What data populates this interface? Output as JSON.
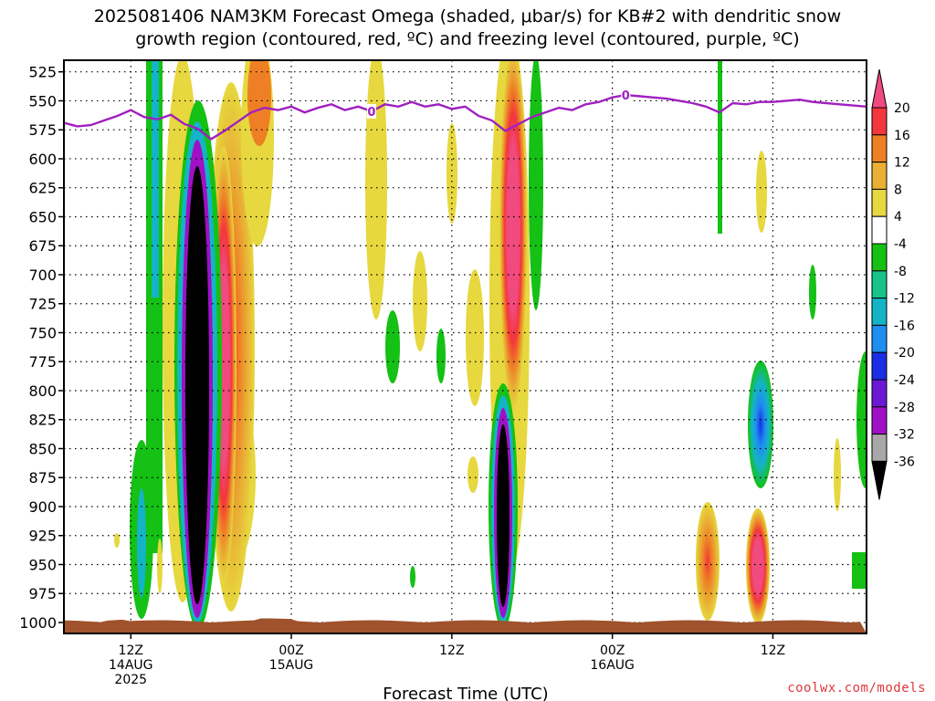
{
  "chart_data": {
    "type": "heatmap",
    "title_line1": "2025081406 NAM3KM Forecast Omega (shaded, μbar/s) for KB#2 with dendritic snow",
    "title_line2": "growth region (contoured, red, ºC) and freezing level (contoured, purple, ºC)",
    "xlabel": "Forecast Time (UTC)",
    "credit": "coolwx.com/models",
    "y_axis": {
      "ticks": [
        525,
        550,
        575,
        600,
        625,
        650,
        675,
        700,
        725,
        750,
        775,
        800,
        825,
        850,
        875,
        900,
        925,
        950,
        975,
        1000
      ],
      "range": [
        1000,
        515
      ],
      "inverted": true
    },
    "x_axis": {
      "range_hours": [
        7,
        67
      ],
      "ticks": [
        {
          "hour": 12,
          "line1": "12Z",
          "line2": "14AUG",
          "line3": "2025"
        },
        {
          "hour": 24,
          "line1": "00Z",
          "line2": "15AUG",
          "line3": ""
        },
        {
          "hour": 36,
          "line1": "12Z",
          "line2": "",
          "line3": ""
        },
        {
          "hour": 48,
          "line1": "00Z",
          "line2": "16AUG",
          "line3": ""
        },
        {
          "hour": 60,
          "line1": "12Z",
          "line2": "",
          "line3": ""
        }
      ]
    },
    "grid": true,
    "colorbar": {
      "labels": [
        "20",
        "16",
        "12",
        "8",
        "4",
        "-4",
        "-8",
        "-12",
        "-16",
        "-20",
        "-24",
        "-28",
        "-32",
        "-36"
      ],
      "colors": [
        "#f04a7e",
        "#f2363c",
        "#ee7f25",
        "#e9b035",
        "#e6d83e",
        "#ffffff",
        "#14c114",
        "#16c489",
        "#14b4c6",
        "#1e8ef0",
        "#1a2ee6",
        "#6a18d4",
        "#a010c6",
        "#a8a8a8",
        "#000000"
      ]
    },
    "freezing_level": {
      "label": "0",
      "color": "#a020c0",
      "points": [
        [
          7,
          569
        ],
        [
          8,
          572
        ],
        [
          9,
          571
        ],
        [
          10,
          567
        ],
        [
          11,
          563
        ],
        [
          12,
          558
        ],
        [
          13,
          564
        ],
        [
          14,
          566
        ],
        [
          15,
          562
        ],
        [
          16,
          570
        ],
        [
          17,
          574
        ],
        [
          18,
          583
        ],
        [
          19,
          576
        ],
        [
          20,
          568
        ],
        [
          21,
          560
        ],
        [
          22,
          556
        ],
        [
          23,
          558
        ],
        [
          24,
          555
        ],
        [
          25,
          560
        ],
        [
          26,
          556
        ],
        [
          27,
          553
        ],
        [
          28,
          558
        ],
        [
          29,
          555
        ],
        [
          30,
          559
        ],
        [
          31,
          553
        ],
        [
          32,
          555
        ],
        [
          33,
          551
        ],
        [
          34,
          555
        ],
        [
          35,
          553
        ],
        [
          36,
          557
        ],
        [
          37,
          555
        ],
        [
          38,
          563
        ],
        [
          39,
          567
        ],
        [
          40,
          576
        ],
        [
          41,
          570
        ],
        [
          42,
          564
        ],
        [
          43,
          560
        ],
        [
          44,
          556
        ],
        [
          45,
          558
        ],
        [
          46,
          553
        ],
        [
          47,
          551
        ],
        [
          48,
          547
        ],
        [
          49,
          545
        ],
        [
          50,
          546
        ],
        [
          51,
          547
        ],
        [
          52,
          548
        ],
        [
          53,
          550
        ],
        [
          54,
          552
        ],
        [
          55,
          555
        ],
        [
          56,
          560
        ],
        [
          57,
          552
        ],
        [
          58,
          553
        ],
        [
          59,
          551
        ],
        [
          60,
          551
        ],
        [
          61,
          550
        ],
        [
          62,
          549
        ],
        [
          63,
          551
        ],
        [
          64,
          552
        ],
        [
          65,
          553
        ],
        [
          66,
          554
        ],
        [
          67,
          555
        ]
      ],
      "label_hours": [
        30,
        49
      ]
    },
    "omega_features": [
      {
        "hour": 15.7,
        "top": 585,
        "bottom": 996,
        "min": -36
      },
      {
        "hour": 38.5,
        "top": 796,
        "bottom": 992,
        "min": -36
      },
      {
        "hour": 17.8,
        "top": 545,
        "bottom": 960,
        "max": 20
      },
      {
        "hour": 38.9,
        "top": 515,
        "bottom": 780,
        "max": 20
      },
      {
        "hour": 21.6,
        "top": 515,
        "bottom": 660,
        "max": 12
      },
      {
        "hour": 60.8,
        "top": 905,
        "bottom": 990,
        "max": 16
      },
      {
        "hour": 56.6,
        "top": 895,
        "bottom": 985,
        "max": 12
      },
      {
        "hour": 60.8,
        "top": 750,
        "bottom": 862,
        "min": -20
      }
    ],
    "terrain_color": "#a0522d"
  }
}
